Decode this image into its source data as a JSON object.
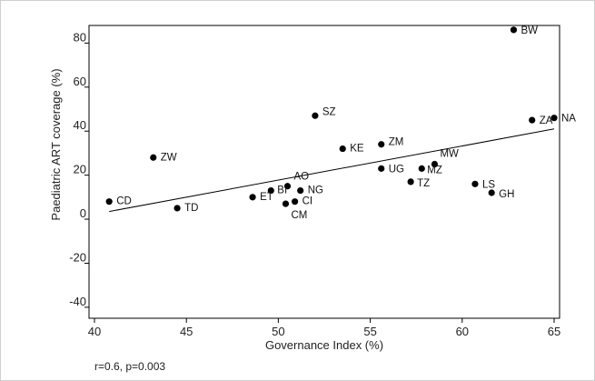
{
  "chart_data": {
    "type": "scatter",
    "xlabel": "Governance Index (%)",
    "ylabel": "Paediatric ART coverage (%)",
    "xlim": [
      40,
      65
    ],
    "ylim": [
      -45,
      88
    ],
    "xticks": [
      40,
      45,
      50,
      55,
      60,
      65
    ],
    "yticks": [
      -40,
      -20,
      0,
      20,
      40,
      60,
      80
    ],
    "grid": false,
    "points": [
      {
        "label": "BW",
        "x": 62.8,
        "y": 86
      },
      {
        "label": "NA",
        "x": 65.0,
        "y": 46
      },
      {
        "label": "ZA",
        "x": 63.8,
        "y": 45
      },
      {
        "label": "SZ",
        "x": 52.0,
        "y": 47
      },
      {
        "label": "ZM",
        "x": 55.6,
        "y": 34
      },
      {
        "label": "KE",
        "x": 53.5,
        "y": 32
      },
      {
        "label": "ZW",
        "x": 43.2,
        "y": 28
      },
      {
        "label": "MW",
        "x": 58.5,
        "y": 25
      },
      {
        "label": "MZ",
        "x": 57.8,
        "y": 23
      },
      {
        "label": "UG",
        "x": 55.6,
        "y": 23
      },
      {
        "label": "TZ",
        "x": 57.2,
        "y": 17
      },
      {
        "label": "LS",
        "x": 60.7,
        "y": 16
      },
      {
        "label": "GH",
        "x": 61.6,
        "y": 12
      },
      {
        "label": "AO",
        "x": 50.5,
        "y": 15
      },
      {
        "label": "BI",
        "x": 49.6,
        "y": 13
      },
      {
        "label": "NG",
        "x": 51.2,
        "y": 13
      },
      {
        "label": "ET",
        "x": 48.6,
        "y": 10
      },
      {
        "label": "CI",
        "x": 50.9,
        "y": 8
      },
      {
        "label": "CM",
        "x": 50.4,
        "y": 7
      },
      {
        "label": "CD",
        "x": 40.8,
        "y": 8
      },
      {
        "label": "TD",
        "x": 44.5,
        "y": 5
      }
    ],
    "fit_line": {
      "x": [
        40.8,
        65.0
      ],
      "y": [
        3.5,
        41
      ]
    },
    "annotation": "r=0.6, p=0.003"
  }
}
